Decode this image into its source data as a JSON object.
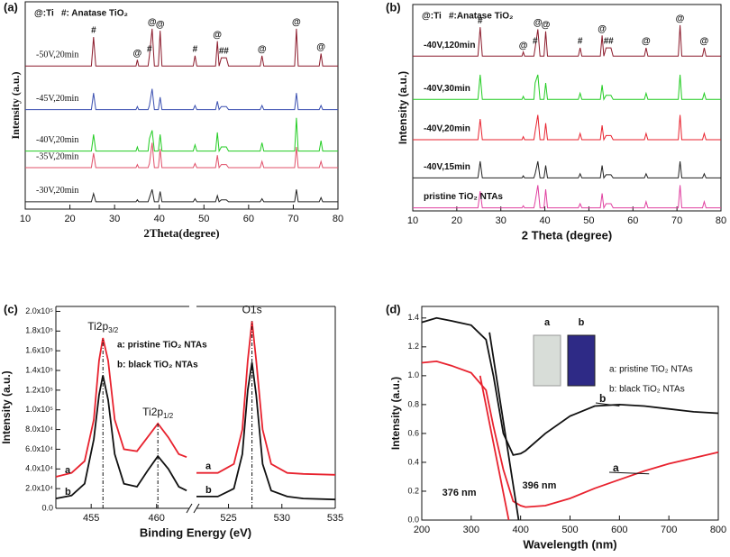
{
  "chart_data": [
    {
      "type": "line",
      "panel_label": "(a)",
      "x_label": "2Theta(degree)",
      "y_label": "Intensity (a.u.)",
      "legend_notes": [
        "@:Ti",
        "#: Anatase TiO₂"
      ],
      "xlim": [
        10,
        80
      ],
      "xticks": [
        10,
        20,
        30,
        40,
        50,
        60,
        70,
        80
      ],
      "ylim": [
        0,
        100
      ],
      "x": [
        10,
        24.8,
        25.3,
        25.8,
        34.8,
        35.1,
        35.4,
        37.5,
        37.8,
        38.4,
        38.9,
        39.8,
        40.2,
        40.6,
        47.6,
        48.0,
        48.4,
        52.6,
        53.0,
        53.4,
        53.9,
        55.0,
        55.5,
        62.6,
        63.0,
        63.4,
        70.3,
        70.7,
        71.1,
        75.8,
        76.2,
        76.6,
        80
      ],
      "series": [
        {
          "name": "-50V,20min",
          "color": "#8b1a2b",
          "values": [
            69,
            69,
            83,
            69,
            69,
            72,
            69,
            69,
            74,
            87,
            69,
            69,
            86,
            69,
            69,
            74,
            69,
            69,
            81,
            69,
            73,
            73,
            69,
            69,
            74,
            69,
            69,
            87,
            69,
            69,
            75,
            69,
            69
          ]
        },
        {
          "name": "-45V,20min",
          "color": "#3a4fb0",
          "values": [
            48,
            48,
            56,
            48,
            48,
            49.5,
            48,
            48,
            50,
            58,
            48,
            48,
            54,
            48,
            48,
            50,
            48,
            48,
            52,
            48,
            49.5,
            49.5,
            48,
            48,
            50,
            48,
            48,
            56,
            48,
            48,
            50,
            48,
            48
          ]
        },
        {
          "name": "-40V,20min",
          "color": "#22cc22",
          "values": [
            28,
            28,
            36,
            28,
            28,
            30,
            28,
            28,
            34,
            38,
            28,
            28,
            36,
            28,
            28,
            31,
            28,
            28,
            37,
            28,
            30,
            30,
            28,
            28,
            32,
            28,
            28,
            44,
            28,
            28,
            33,
            28,
            28
          ]
        },
        {
          "name": "-35V,20min",
          "color": "#e0506a",
          "values": [
            20,
            20,
            27,
            20,
            20,
            21.5,
            20,
            20,
            22,
            32,
            20,
            20,
            29,
            20,
            20,
            22,
            20,
            20,
            26,
            20,
            21.5,
            21.5,
            20,
            20,
            23,
            20,
            20,
            30,
            20,
            20,
            23,
            20,
            20
          ]
        },
        {
          "name": "-30V,20min",
          "color": "#222222",
          "values": [
            3.5,
            3.5,
            7.5,
            3.5,
            3.5,
            4.5,
            3.5,
            3.5,
            5.5,
            9.5,
            3.5,
            3.5,
            8.5,
            3.5,
            3.5,
            5,
            3.5,
            3.5,
            6.5,
            3.5,
            4.5,
            4.5,
            3.5,
            3.5,
            5,
            3.5,
            3.5,
            9.5,
            3.5,
            3.5,
            5.5,
            3.5,
            3.5
          ]
        }
      ],
      "markers": [
        {
          "text": "#",
          "x": 25.3
        },
        {
          "text": "@",
          "x": 35.1
        },
        {
          "text": "#",
          "x": 37.8
        },
        {
          "text": "@",
          "x": 38.4
        },
        {
          "text": "@",
          "x": 40.2
        },
        {
          "text": "#",
          "x": 48.0
        },
        {
          "text": "@",
          "x": 53.0
        },
        {
          "text": "#",
          "x": 53.9
        },
        {
          "text": "#",
          "x": 55.0
        },
        {
          "text": "@",
          "x": 63.0
        },
        {
          "text": "@",
          "x": 70.7
        },
        {
          "text": "@",
          "x": 76.2
        }
      ]
    },
    {
      "type": "line",
      "panel_label": "(b)",
      "x_label": "2 Theta (degree)",
      "y_label": "Intensity (a.u.)",
      "legend_notes": [
        "@:Ti",
        "#:Anatase TiO₂"
      ],
      "xlim": [
        10,
        80
      ],
      "xticks": [
        10,
        20,
        30,
        40,
        50,
        60,
        70,
        80
      ],
      "ylim": [
        0,
        100
      ],
      "x": [
        10,
        24.8,
        25.3,
        25.8,
        34.8,
        35.1,
        35.4,
        37.5,
        37.8,
        38.4,
        38.9,
        39.8,
        40.2,
        40.6,
        47.6,
        48.0,
        48.4,
        52.6,
        53.0,
        53.4,
        53.9,
        55.0,
        55.5,
        62.6,
        63.0,
        63.4,
        70.3,
        70.7,
        71.1,
        75.8,
        76.2,
        76.6,
        80
      ],
      "series": [
        {
          "name": "-40V,120min",
          "color": "#8b1a2b",
          "values": [
            75,
            75,
            89,
            75,
            75,
            77,
            75,
            75,
            79,
            88,
            75,
            75,
            87,
            75,
            75,
            79,
            75,
            75,
            85,
            75,
            79,
            79,
            75,
            75,
            79,
            75,
            75,
            90,
            75,
            75,
            79,
            75,
            75
          ]
        },
        {
          "name": "-40V,30min",
          "color": "#22cc22",
          "values": [
            54,
            54,
            66,
            54,
            54,
            55.5,
            54,
            54,
            62,
            66,
            54,
            54,
            62,
            54,
            54,
            57,
            54,
            54,
            61,
            54,
            56,
            56,
            54,
            54,
            57,
            54,
            54,
            66,
            54,
            54,
            57,
            54,
            54
          ]
        },
        {
          "name": "-40V,20min",
          "color": "#e8222e",
          "values": [
            34.5,
            34.5,
            44.5,
            34.5,
            34.5,
            36,
            34.5,
            34.5,
            38.5,
            46.5,
            34.5,
            34.5,
            42.5,
            34.5,
            34.5,
            37.5,
            34.5,
            34.5,
            41.5,
            34.5,
            36.5,
            36.5,
            34.5,
            34.5,
            37.5,
            34.5,
            34.5,
            46.5,
            34.5,
            34.5,
            37.5,
            34.5,
            34.5
          ]
        },
        {
          "name": "-40V,15min",
          "color": "#222222",
          "values": [
            16,
            16,
            24,
            16,
            16,
            17,
            16,
            16,
            18,
            24,
            16,
            16,
            22,
            16,
            16,
            18,
            16,
            16,
            22,
            16,
            17.5,
            17.5,
            16,
            16,
            18,
            16,
            16,
            24,
            16,
            16,
            18,
            16,
            16
          ]
        },
        {
          "name": "pristine TiO₂ NTAs",
          "color": "#e040a0",
          "values": [
            1.5,
            1.5,
            9.5,
            1.5,
            1.5,
            2.5,
            1.5,
            1.5,
            4.5,
            12.5,
            1.5,
            1.5,
            10.5,
            1.5,
            1.5,
            3.5,
            1.5,
            1.5,
            8.5,
            1.5,
            3.5,
            3.5,
            1.5,
            1.5,
            4.5,
            1.5,
            1.5,
            12.5,
            1.5,
            1.5,
            4.5,
            1.5,
            1.5
          ]
        }
      ],
      "markers": [
        {
          "text": "#",
          "x": 25.3
        },
        {
          "text": "@",
          "x": 35.1
        },
        {
          "text": "#",
          "x": 37.8
        },
        {
          "text": "@",
          "x": 38.4
        },
        {
          "text": "@",
          "x": 40.2
        },
        {
          "text": "#",
          "x": 48.0
        },
        {
          "text": "@",
          "x": 53.0
        },
        {
          "text": "#",
          "x": 53.9
        },
        {
          "text": "#",
          "x": 55.0
        },
        {
          "text": "@",
          "x": 63.0
        },
        {
          "text": "@",
          "x": 70.7
        },
        {
          "text": "@",
          "x": 76.2
        }
      ]
    },
    {
      "type": "line",
      "panel_label": "(c)",
      "x_label": "Binding Energy (eV)",
      "y_label": "Intensity (a.u.)",
      "legend_notes": [
        "a: pristine TiO₂ NTAs",
        "b: black TiO₂ NTAs"
      ],
      "xlim": [
        452.3,
        535
      ],
      "x_break": [
        462.5,
        522
      ],
      "xticks": [
        455,
        460,
        525,
        530,
        535
      ],
      "ylim": [
        0,
        205000
      ],
      "yticks": [
        {
          "value": 0,
          "label": "0.0"
        },
        {
          "value": 20000,
          "label": "2.0x10⁴"
        },
        {
          "value": 40000,
          "label": "4.0x10⁴"
        },
        {
          "value": 60000,
          "label": "6.0x10⁴"
        },
        {
          "value": 80000,
          "label": "8.0x10⁴"
        },
        {
          "value": 100000,
          "label": "1.0x10⁵"
        },
        {
          "value": 120000,
          "label": "1.2x10⁵"
        },
        {
          "value": 140000,
          "label": "1.4x10⁵"
        },
        {
          "value": 160000,
          "label": "1.6x10⁵"
        },
        {
          "value": 180000,
          "label": "1.8x10⁵"
        },
        {
          "value": 200000,
          "label": "2.0x10⁵"
        }
      ],
      "x": [
        452.3,
        453.5,
        454.5,
        455.2,
        455.6,
        455.9,
        456.3,
        456.8,
        457.5,
        458.5,
        459.3,
        460.1,
        460.9,
        461.7,
        462.3,
        462.5,
        522,
        524,
        525.5,
        526.3,
        526.8,
        527.2,
        527.6,
        528.2,
        529,
        530.5,
        532,
        535
      ],
      "series": [
        {
          "name": "a",
          "color": "#e8222e",
          "values": [
            32000,
            36000,
            48000,
            90000,
            150000,
            173000,
            150000,
            90000,
            60000,
            58000,
            72000,
            86000,
            72000,
            55000,
            52000,
            null,
            36000,
            36000,
            45000,
            80000,
            150000,
            190000,
            150000,
            80000,
            45000,
            36000,
            35000,
            34000
          ]
        },
        {
          "name": "b",
          "color": "#111111",
          "values": [
            10000,
            13000,
            25000,
            70000,
            115000,
            135000,
            110000,
            55000,
            25000,
            22000,
            38000,
            53000,
            40000,
            22000,
            18000,
            null,
            12000,
            12000,
            20000,
            55000,
            120000,
            148000,
            115000,
            45000,
            18000,
            12000,
            10000,
            9000
          ]
        }
      ],
      "peak_labels": [
        {
          "text": "Ti2p",
          "sub": "3/2",
          "x": 455.9
        },
        {
          "text": "Ti2p",
          "sub": "1/2",
          "x": 460.1
        },
        {
          "text": "O1s",
          "x": 527.2
        }
      ]
    },
    {
      "type": "line",
      "panel_label": "(d)",
      "x_label": "Wavelength (nm)",
      "y_label": "Intensity (a.u.)",
      "legend_notes": [
        "a: pristine TiO₂ NTAs",
        "b: black TiO₂ NTAs"
      ],
      "inset_labels": [
        "a",
        "b"
      ],
      "xlim": [
        200,
        800
      ],
      "xticks": [
        200,
        300,
        400,
        500,
        600,
        700,
        800
      ],
      "ylim": [
        0,
        1.48
      ],
      "yticks": [
        {
          "value": 0,
          "label": "0.0"
        },
        0.2,
        0.4,
        0.6,
        0.8,
        {
          "value": 1,
          "label": "1.0"
        },
        1.2,
        1.4
      ],
      "x": [
        200,
        230,
        260,
        300,
        330,
        345,
        365,
        385,
        400,
        410,
        450,
        500,
        550,
        600,
        650,
        700,
        750,
        800
      ],
      "series": [
        {
          "name": "a",
          "color": "#e8222e",
          "values": [
            1.09,
            1.1,
            1.07,
            1.02,
            0.9,
            0.65,
            0.35,
            0.13,
            0.1,
            0.09,
            0.1,
            0.15,
            0.22,
            0.28,
            0.34,
            0.39,
            0.43,
            0.47
          ]
        },
        {
          "name": "b",
          "color": "#111111",
          "values": [
            1.37,
            1.4,
            1.38,
            1.35,
            1.25,
            1.0,
            0.6,
            0.45,
            0.46,
            0.48,
            0.6,
            0.72,
            0.79,
            0.8,
            0.79,
            0.77,
            0.75,
            0.74
          ]
        }
      ],
      "fit_lines": [
        {
          "label": "376 nm",
          "color": "#e8222e",
          "x": [
            318,
            376
          ],
          "y": [
            1.0,
            0
          ]
        },
        {
          "label": "396 nm",
          "color": "#111111",
          "x": [
            337,
            396
          ],
          "y": [
            1.3,
            0
          ]
        }
      ]
    }
  ]
}
